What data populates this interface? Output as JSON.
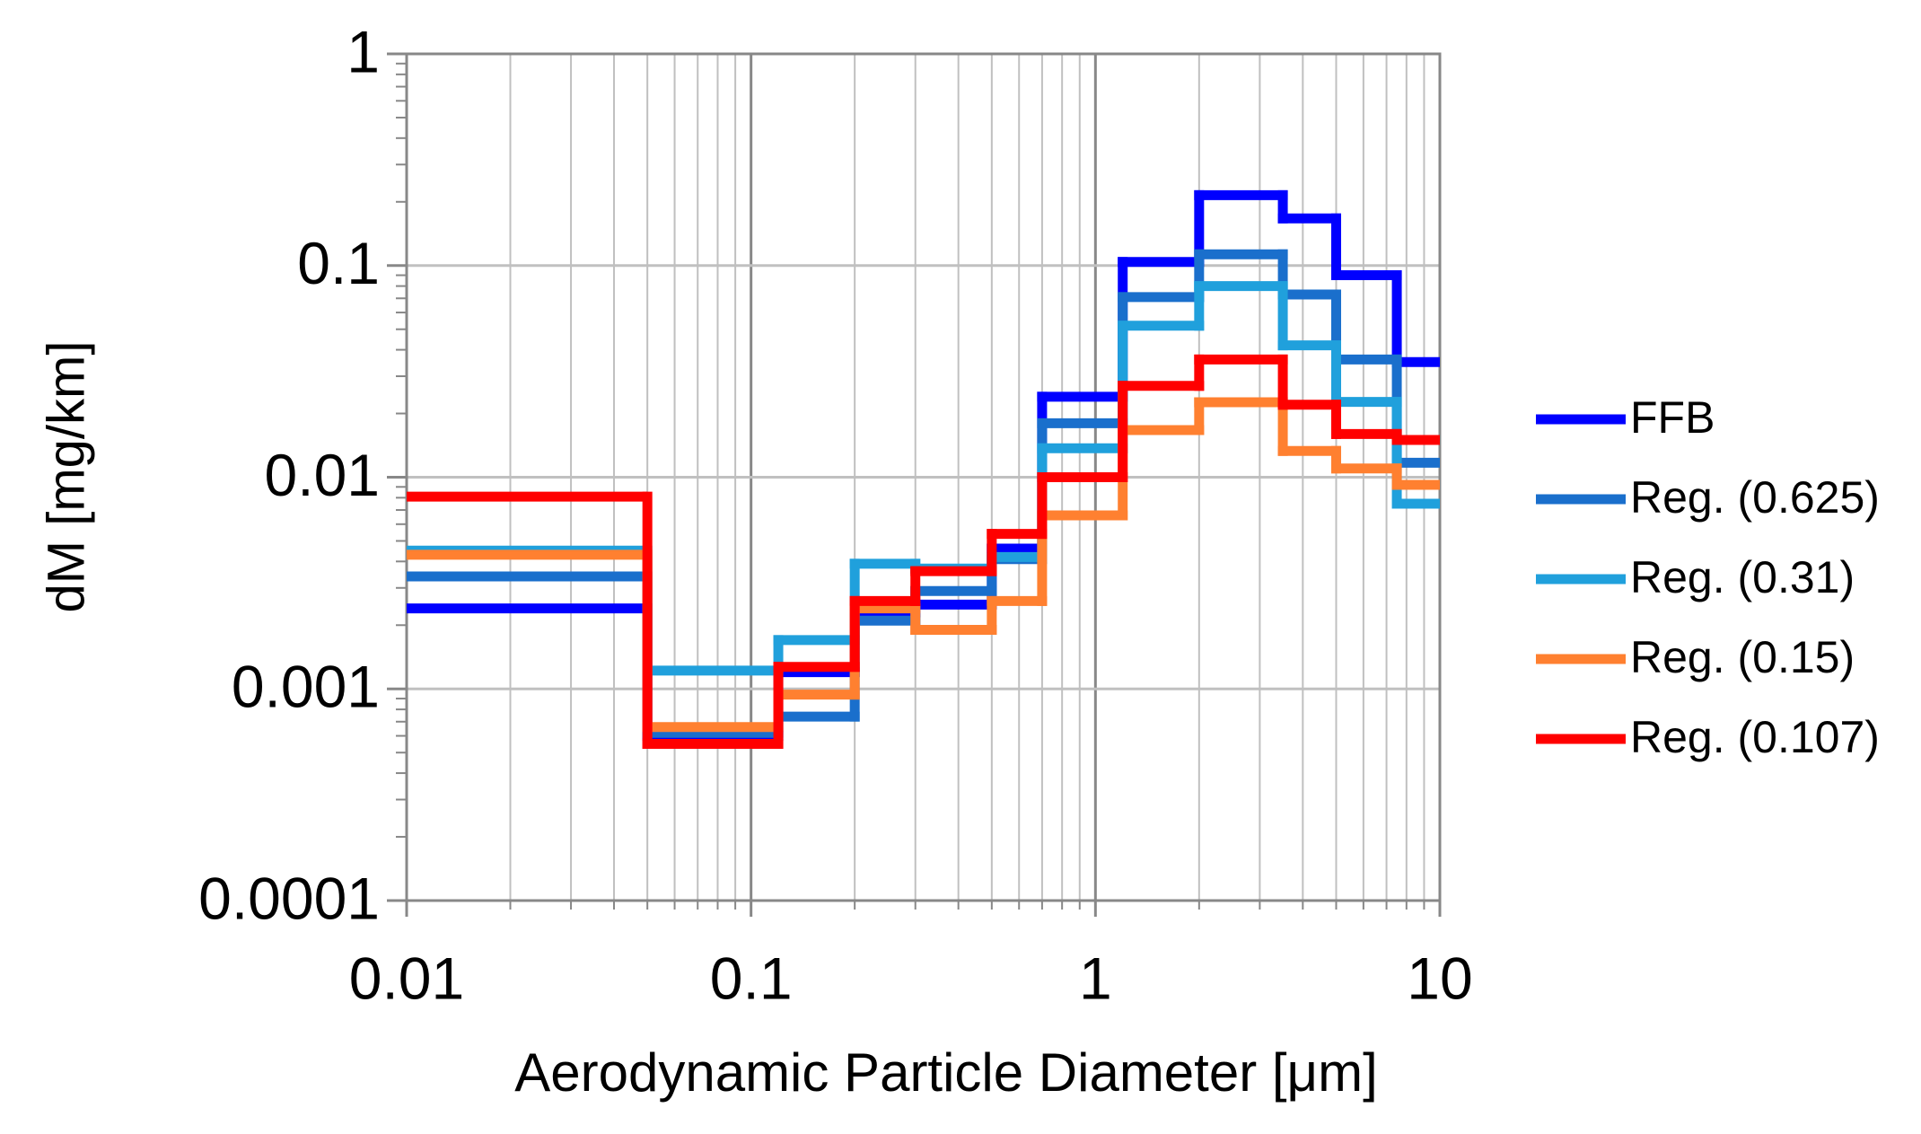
{
  "chart_data": {
    "type": "histogram",
    "x_label": "Aerodynamic Particle Diameter [μm]",
    "y_label": "dM [mg/km]",
    "xscale": "log",
    "yscale": "log",
    "grid": true,
    "minor_grid": true,
    "legend": "right",
    "xlim": [
      0.01,
      10
    ],
    "xticks": [
      0.01,
      0.1,
      1,
      10
    ],
    "ylim": [
      0.0001,
      1
    ],
    "yticks": [
      0.0001,
      0.001,
      0.01,
      0.1,
      1
    ],
    "bins": [
      0.01,
      0.05,
      0.12,
      0.2,
      0.3,
      0.5,
      0.7,
      1.2,
      2,
      3.5,
      5,
      7.5,
      10
    ],
    "series": [
      {
        "name": "FFB",
        "color": "#0000ff",
        "values": [
          0.0024,
          0.0006,
          0.0012,
          0.0023,
          0.0025,
          0.0046,
          0.024,
          0.104,
          0.215,
          0.167,
          0.09,
          0.035
        ]
      },
      {
        "name": "Reg. (0.625)",
        "color": "#1a6fcc",
        "values": [
          0.0034,
          0.00062,
          0.00074,
          0.0021,
          0.0029,
          0.0041,
          0.018,
          0.071,
          0.113,
          0.073,
          0.036,
          0.0117
        ]
      },
      {
        "name": "Reg. (0.31)",
        "color": "#20a0dc",
        "values": [
          0.0045,
          0.00122,
          0.0017,
          0.0039,
          0.0037,
          0.0042,
          0.0137,
          0.052,
          0.08,
          0.042,
          0.0227,
          0.0075
        ]
      },
      {
        "name": "Reg. (0.15)",
        "color": "#ff8030",
        "values": [
          0.0043,
          0.00066,
          0.00094,
          0.0024,
          0.0019,
          0.0026,
          0.0066,
          0.0167,
          0.0226,
          0.0133,
          0.011,
          0.0092
        ]
      },
      {
        "name": "Reg. (0.107)",
        "color": "#ff0000",
        "values": [
          0.0081,
          0.00055,
          0.00127,
          0.0026,
          0.0036,
          0.0054,
          0.01,
          0.027,
          0.036,
          0.022,
          0.016,
          0.015
        ]
      }
    ]
  }
}
